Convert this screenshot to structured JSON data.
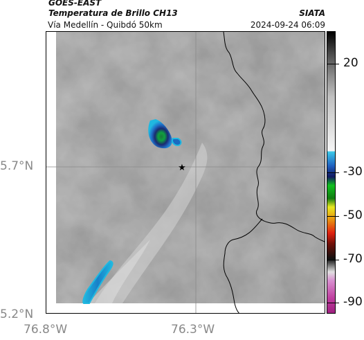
{
  "header": {
    "source": "GOES-EAST",
    "product": "Temperatura de Brillo CH13",
    "organization": "SIATA",
    "region": "Vía Medellín - Quibdó 50km",
    "datetime": "2024-09-24 06:09"
  },
  "map": {
    "latitude_labels": [
      "5.7°N",
      "5.2°N"
    ],
    "longitude_labels": [
      "76.8°W",
      "76.3°W"
    ],
    "marker": "star-icon",
    "colors": {
      "grid": "#8a8a8a",
      "border": "#000000",
      "cold_cloud": "#1fa8d8",
      "core": "#1a7a3a"
    }
  },
  "colorbar": {
    "tick_labels": [
      "20",
      "-30",
      "-50",
      "-70",
      "-90"
    ],
    "tick_values": [
      20,
      -30,
      -50,
      -70,
      -90
    ],
    "units_range": [
      -95,
      35
    ],
    "stops": [
      {
        "v": 35,
        "c": "#000000"
      },
      {
        "v": 25,
        "c": "#4a4a4a"
      },
      {
        "v": 15,
        "c": "#8a8a8a"
      },
      {
        "v": 5,
        "c": "#c0c0c0"
      },
      {
        "v": -20,
        "c": "#f5f5f5"
      },
      {
        "v": -20.5,
        "c": "#3ac8e8"
      },
      {
        "v": -27,
        "c": "#2060c0"
      },
      {
        "v": -32,
        "c": "#101860"
      },
      {
        "v": -36,
        "c": "#10c020"
      },
      {
        "v": -42,
        "c": "#107a10"
      },
      {
        "v": -46,
        "c": "#e8e820"
      },
      {
        "v": -52,
        "c": "#e89010"
      },
      {
        "v": -58,
        "c": "#e02010"
      },
      {
        "v": -63,
        "c": "#701008"
      },
      {
        "v": -70,
        "c": "#101010"
      },
      {
        "v": -76,
        "c": "#e0e0e0"
      },
      {
        "v": -80,
        "c": "#d890d0"
      },
      {
        "v": -88,
        "c": "#c040a0"
      },
      {
        "v": -95,
        "c": "#a02080"
      }
    ]
  }
}
